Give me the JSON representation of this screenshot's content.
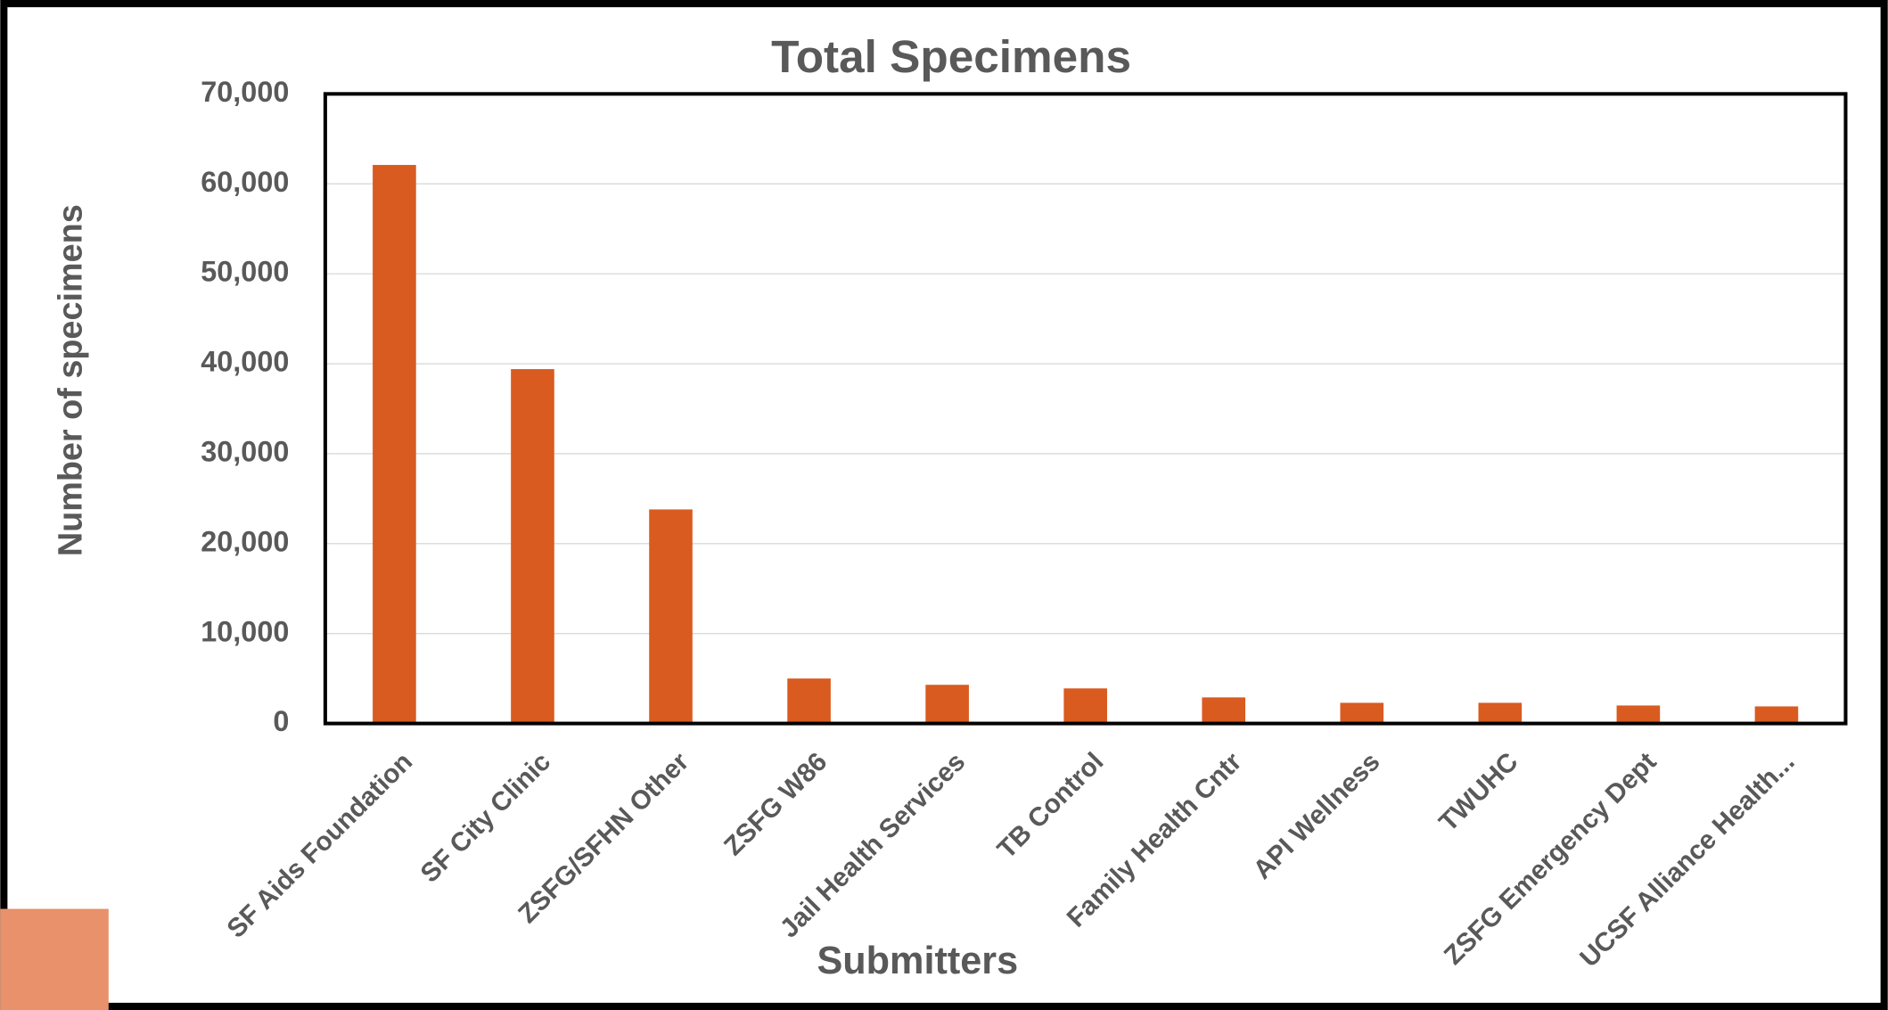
{
  "chart_data": {
    "type": "bar",
    "title": "Total Specimens",
    "x_label": "Submitters",
    "y_label": "Number of specimens",
    "categories": [
      "SF Aids Foundation",
      "SF City Clinic",
      "ZSFG/SFHN Other",
      "ZSFG W86",
      "Jail Health Services",
      "TB Control",
      "Family Health Cntr",
      "API Wellness",
      "TWUHC",
      "ZSFG Emergency Dept",
      "UCSF Alliance Health..."
    ],
    "values": [
      62100,
      39400,
      23800,
      5000,
      4300,
      3900,
      2900,
      2300,
      2300,
      2000,
      1900
    ],
    "color": "#d95b20",
    "ylim": [
      0,
      70000
    ],
    "yticks": [
      0,
      {
        "value": 10000,
        "label": "10,000"
      },
      {
        "value": 20000,
        "label": "20,000"
      },
      {
        "value": 30000,
        "label": "30,000"
      },
      {
        "value": 40000,
        "label": "40,000"
      },
      {
        "value": 50000,
        "label": "50,000"
      },
      {
        "value": 60000,
        "label": "60,000"
      },
      {
        "value": 70000,
        "label": "70,000"
      }
    ],
    "grid": true
  }
}
